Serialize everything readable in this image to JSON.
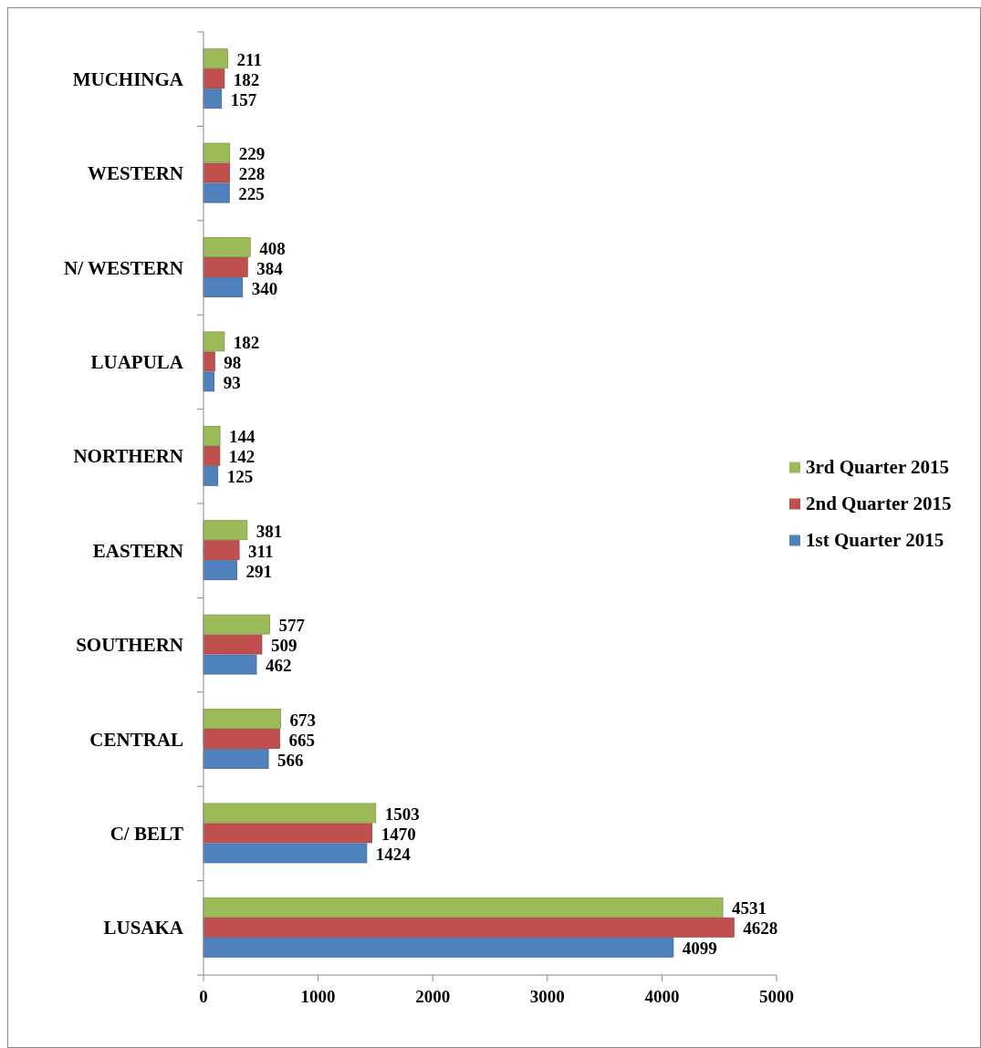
{
  "chart_data": {
    "type": "bar",
    "orientation": "horizontal",
    "categories": [
      "MUCHINGA",
      "WESTERN",
      "N/ WESTERN",
      "LUAPULA",
      "NORTHERN",
      "EASTERN",
      "SOUTHERN",
      "CENTRAL",
      "C/ BELT",
      "LUSAKA"
    ],
    "series": [
      {
        "name": "3rd Quarter 2015",
        "color": "#9bbb59",
        "values": [
          211,
          229,
          408,
          182,
          144,
          381,
          577,
          673,
          1503,
          4531
        ]
      },
      {
        "name": "2nd Quarter 2015",
        "color": "#c0504d",
        "values": [
          182,
          228,
          384,
          98,
          142,
          311,
          509,
          665,
          1470,
          4628
        ]
      },
      {
        "name": "1st Quarter 2015",
        "color": "#4f81bd",
        "values": [
          157,
          225,
          340,
          93,
          125,
          291,
          462,
          566,
          1424,
          4099
        ]
      }
    ],
    "xlim": [
      0,
      5000
    ],
    "xticks": [
      0,
      1000,
      2000,
      3000,
      4000,
      5000
    ],
    "data_labels": true,
    "legend": "right",
    "grid": false
  }
}
